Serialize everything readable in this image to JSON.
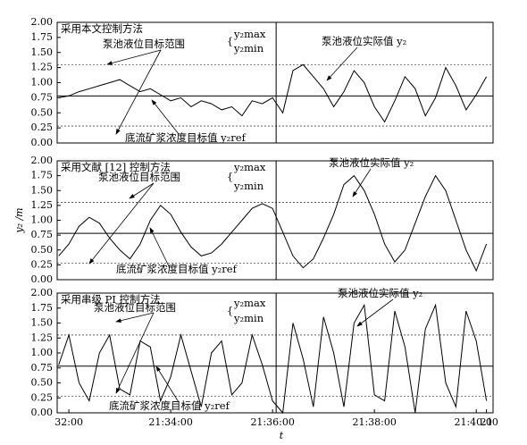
{
  "chart_data": [
    {
      "type": "line",
      "title": "采用本文控制方法",
      "annotations": [
        "泵池液位目标范围",
        "y₂max",
        "y₂min",
        "泵池液位实际值 y₂",
        "底流矿浆浓度目标值 y₂ref"
      ],
      "x": [
        31.8,
        32.0,
        32.2,
        32.4,
        32.6,
        32.8,
        33.0,
        33.2,
        33.4,
        33.6,
        33.8,
        34.0,
        34.2,
        34.4,
        34.6,
        34.8,
        35.0,
        35.2,
        35.4,
        35.6,
        35.8,
        36.0,
        36.2,
        36.4,
        36.6,
        36.8,
        37.0,
        37.2,
        37.4,
        37.6,
        37.8,
        38.0,
        38.2,
        38.4,
        38.6,
        38.8,
        39.0,
        39.2,
        39.4,
        39.6,
        39.8,
        40.0,
        40.2
      ],
      "series": [
        {
          "color": "#000000",
          "values": [
            0.75,
            0.78,
            0.85,
            0.9,
            0.95,
            1.0,
            1.05,
            0.95,
            0.85,
            0.9,
            0.8,
            0.7,
            0.75,
            0.6,
            0.7,
            0.65,
            0.55,
            0.6,
            0.45,
            0.7,
            0.65,
            0.75,
            0.5,
            1.2,
            1.3,
            1.1,
            0.9,
            0.6,
            0.85,
            1.2,
            1.0,
            0.6,
            0.35,
            0.7,
            1.1,
            0.9,
            0.45,
            0.75,
            1.25,
            0.95,
            0.55,
            0.8,
            1.1
          ]
        }
      ],
      "ref_lines": [
        {
          "value": 1.3,
          "style": "dashed"
        },
        {
          "value": 0.78,
          "style": "solid"
        },
        {
          "value": 0.28,
          "style": "dashed"
        }
      ],
      "switch_x": 36.07,
      "xlim": [
        31.77,
        40.33
      ],
      "ylim": [
        0,
        2
      ],
      "yticks": [
        {
          "value": 0,
          "label": "0.00"
        },
        0.25,
        {
          "value": 0.5,
          "label": "0.50"
        },
        0.75,
        {
          "value": 1,
          "label": "1.00"
        },
        1.25,
        {
          "value": 1.5,
          "label": "1.50"
        },
        1.75,
        {
          "value": 2,
          "label": "2.00"
        }
      ]
    },
    {
      "type": "line",
      "title": "采用文献 [12] 控制方法",
      "ylabel": "y₂ /m",
      "annotations": [
        "泵池液位目标范围",
        "y₂max",
        "y₂min",
        "泵池液位实际值 y₂",
        "底流矿浆浓度目标值 y₂ref"
      ],
      "x": [
        31.8,
        32.0,
        32.2,
        32.4,
        32.6,
        32.8,
        33.0,
        33.2,
        33.4,
        33.6,
        33.8,
        34.0,
        34.2,
        34.4,
        34.6,
        34.8,
        35.0,
        35.2,
        35.4,
        35.6,
        35.8,
        36.0,
        36.2,
        36.4,
        36.6,
        36.8,
        37.0,
        37.2,
        37.4,
        37.6,
        37.8,
        38.0,
        38.2,
        38.4,
        38.6,
        38.8,
        39.0,
        39.2,
        39.4,
        39.6,
        39.8,
        40.0,
        40.2
      ],
      "series": [
        {
          "color": "#000000",
          "values": [
            0.4,
            0.6,
            0.9,
            1.05,
            0.95,
            0.7,
            0.5,
            0.35,
            0.6,
            1.0,
            1.25,
            1.1,
            0.8,
            0.55,
            0.4,
            0.45,
            0.6,
            0.8,
            1.0,
            1.2,
            1.28,
            1.2,
            0.8,
            0.4,
            0.2,
            0.35,
            0.7,
            1.1,
            1.6,
            1.75,
            1.5,
            1.1,
            0.6,
            0.3,
            0.5,
            0.95,
            1.4,
            1.75,
            1.5,
            1.0,
            0.5,
            0.15,
            0.6
          ]
        }
      ],
      "ref_lines": [
        {
          "value": 1.3,
          "style": "dashed"
        },
        {
          "value": 0.78,
          "style": "solid"
        },
        {
          "value": 0.28,
          "style": "dashed"
        }
      ],
      "switch_x": 36.07,
      "xlim": [
        31.77,
        40.33
      ],
      "ylim": [
        0,
        2
      ],
      "yticks": [
        {
          "value": 0,
          "label": "0.00"
        },
        0.25,
        {
          "value": 0.5,
          "label": "0.50"
        },
        0.75,
        {
          "value": 1,
          "label": "1.00"
        },
        1.25,
        {
          "value": 1.5,
          "label": "1.50"
        },
        1.75,
        {
          "value": 2,
          "label": "2.00"
        }
      ]
    },
    {
      "type": "line",
      "title": "采用串级 PI 控制方法",
      "xlabel": "t",
      "annotations": [
        "泵池液位目标范围",
        "y₂max",
        "y₂min",
        "泵池液位实际值 y₂",
        "底流矿浆浓度目标值 y₂ref"
      ],
      "x": [
        31.8,
        32.0,
        32.2,
        32.4,
        32.6,
        32.8,
        33.0,
        33.2,
        33.4,
        33.6,
        33.8,
        34.0,
        34.2,
        34.4,
        34.6,
        34.8,
        35.0,
        35.2,
        35.4,
        35.6,
        35.8,
        36.0,
        36.2,
        36.4,
        36.6,
        36.8,
        37.0,
        37.2,
        37.4,
        37.6,
        37.8,
        38.0,
        38.2,
        38.4,
        38.6,
        38.8,
        39.0,
        39.2,
        39.4,
        39.6,
        39.8,
        40.0,
        40.2
      ],
      "series": [
        {
          "color": "#000000",
          "values": [
            0.8,
            1.3,
            0.5,
            0.2,
            1.0,
            1.3,
            0.4,
            0.3,
            1.2,
            1.1,
            0.2,
            0.6,
            1.3,
            0.7,
            0.1,
            1.0,
            1.2,
            0.3,
            0.5,
            1.3,
            0.8,
            0.2,
            0.0,
            1.5,
            0.9,
            0.1,
            1.6,
            1.0,
            0.1,
            1.5,
            1.8,
            0.3,
            0.2,
            1.7,
            1.1,
            0.0,
            1.4,
            1.8,
            0.5,
            0.1,
            1.7,
            1.2,
            0.2
          ]
        }
      ],
      "ref_lines": [
        {
          "value": 1.3,
          "style": "dashed"
        },
        {
          "value": 0.78,
          "style": "solid"
        },
        {
          "value": 0.28,
          "style": "dashed"
        }
      ],
      "switch_x": 36.07,
      "xlim": [
        31.77,
        40.33
      ],
      "ylim": [
        0,
        2
      ],
      "yticks": [
        {
          "value": 0,
          "label": "0.00"
        },
        0.25,
        {
          "value": 0.5,
          "label": "0.50"
        },
        0.75,
        {
          "value": 1,
          "label": "1.00"
        },
        1.25,
        {
          "value": 1.5,
          "label": "1.50"
        },
        1.75,
        {
          "value": 2,
          "label": "2.00"
        }
      ],
      "xticks": [
        {
          "value": 32,
          "label": "32:00"
        },
        {
          "value": 34,
          "label": "21:34:00"
        },
        {
          "value": 36,
          "label": "21:36:00"
        },
        {
          "value": 38,
          "label": "21:38:00"
        },
        {
          "value": 40,
          "label": "21:40:00"
        },
        {
          "value": 40.2,
          "label": "21"
        }
      ]
    }
  ]
}
